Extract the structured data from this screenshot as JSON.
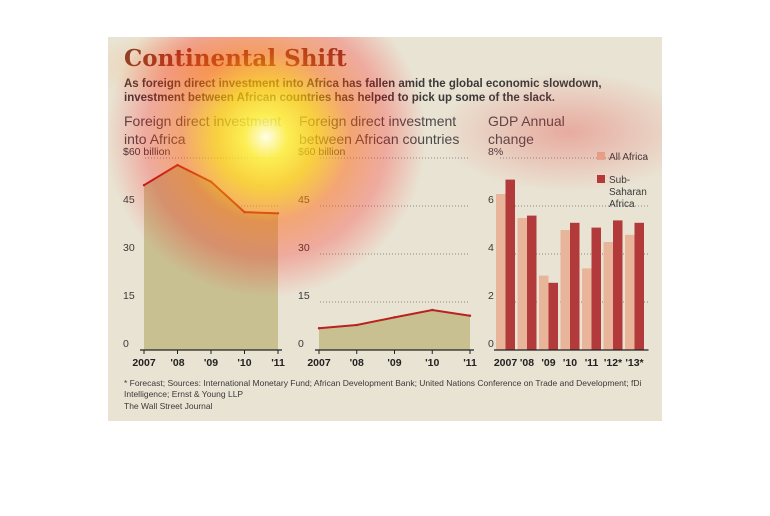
{
  "title": "Continental Shift",
  "subtitle": "As foreign direct investment into Africa has fallen amid the global economic slowdown, investment between African countries has helped to pick up some of the slack.",
  "panels": {
    "fdi_africa_title": "Foreign direct investment into Africa",
    "fdi_intra_title": "Foreign direct investment between African countries",
    "gdp_title": "GDP Annual change"
  },
  "footnote": "* Forecast; Sources: International Monetary Fund; African Development Bank; United Nations Conference on Trade and Development; fDi Intelligence; Ernst & Young LLP",
  "credit": "The Wall Street Journal",
  "colors": {
    "background": "#e9e3d3",
    "area_fill": "#c9c092",
    "line": "#b8221f",
    "all_africa": "#e8b49a",
    "sub_saharan": "#b23a3a",
    "title": "#8a3a2a"
  },
  "chart_data": [
    {
      "type": "area",
      "title": "Foreign direct investment into Africa",
      "x": [
        "2007",
        "'08",
        "'09",
        "'10",
        "'11"
      ],
      "ylim": [
        0,
        60
      ],
      "yticks": [
        "0",
        "15",
        "30",
        "45",
        "$60 billion"
      ],
      "series": [
        {
          "values": [
            51.5,
            57.8,
            52.6,
            43.1,
            42.7
          ]
        }
      ]
    },
    {
      "type": "area",
      "title": "Foreign direct investment between African countries",
      "x": [
        "2007",
        "'08",
        "'09",
        "'10",
        "'11"
      ],
      "ylim": [
        0,
        60
      ],
      "yticks": [
        "0",
        "15",
        "30",
        "45",
        "$60 billion"
      ],
      "series": [
        {
          "values": [
            6.8,
            7.8,
            10.2,
            12.5,
            10.7
          ]
        }
      ]
    },
    {
      "type": "bar",
      "title": "GDP Annual change",
      "categories": [
        "2007",
        "'08",
        "'09",
        "'10",
        "'11",
        "'12*",
        "'13*"
      ],
      "ylim": [
        0,
        8
      ],
      "yticks": [
        "0",
        "2",
        "4",
        "6",
        "8%"
      ],
      "legend": "top-right",
      "series": [
        {
          "name": "All Africa",
          "values": [
            6.5,
            5.5,
            3.1,
            5.0,
            3.4,
            4.5,
            4.8
          ]
        },
        {
          "name": "Sub-Saharan Africa",
          "values": [
            7.1,
            5.6,
            2.8,
            5.3,
            5.1,
            5.4,
            5.3
          ]
        }
      ]
    }
  ]
}
